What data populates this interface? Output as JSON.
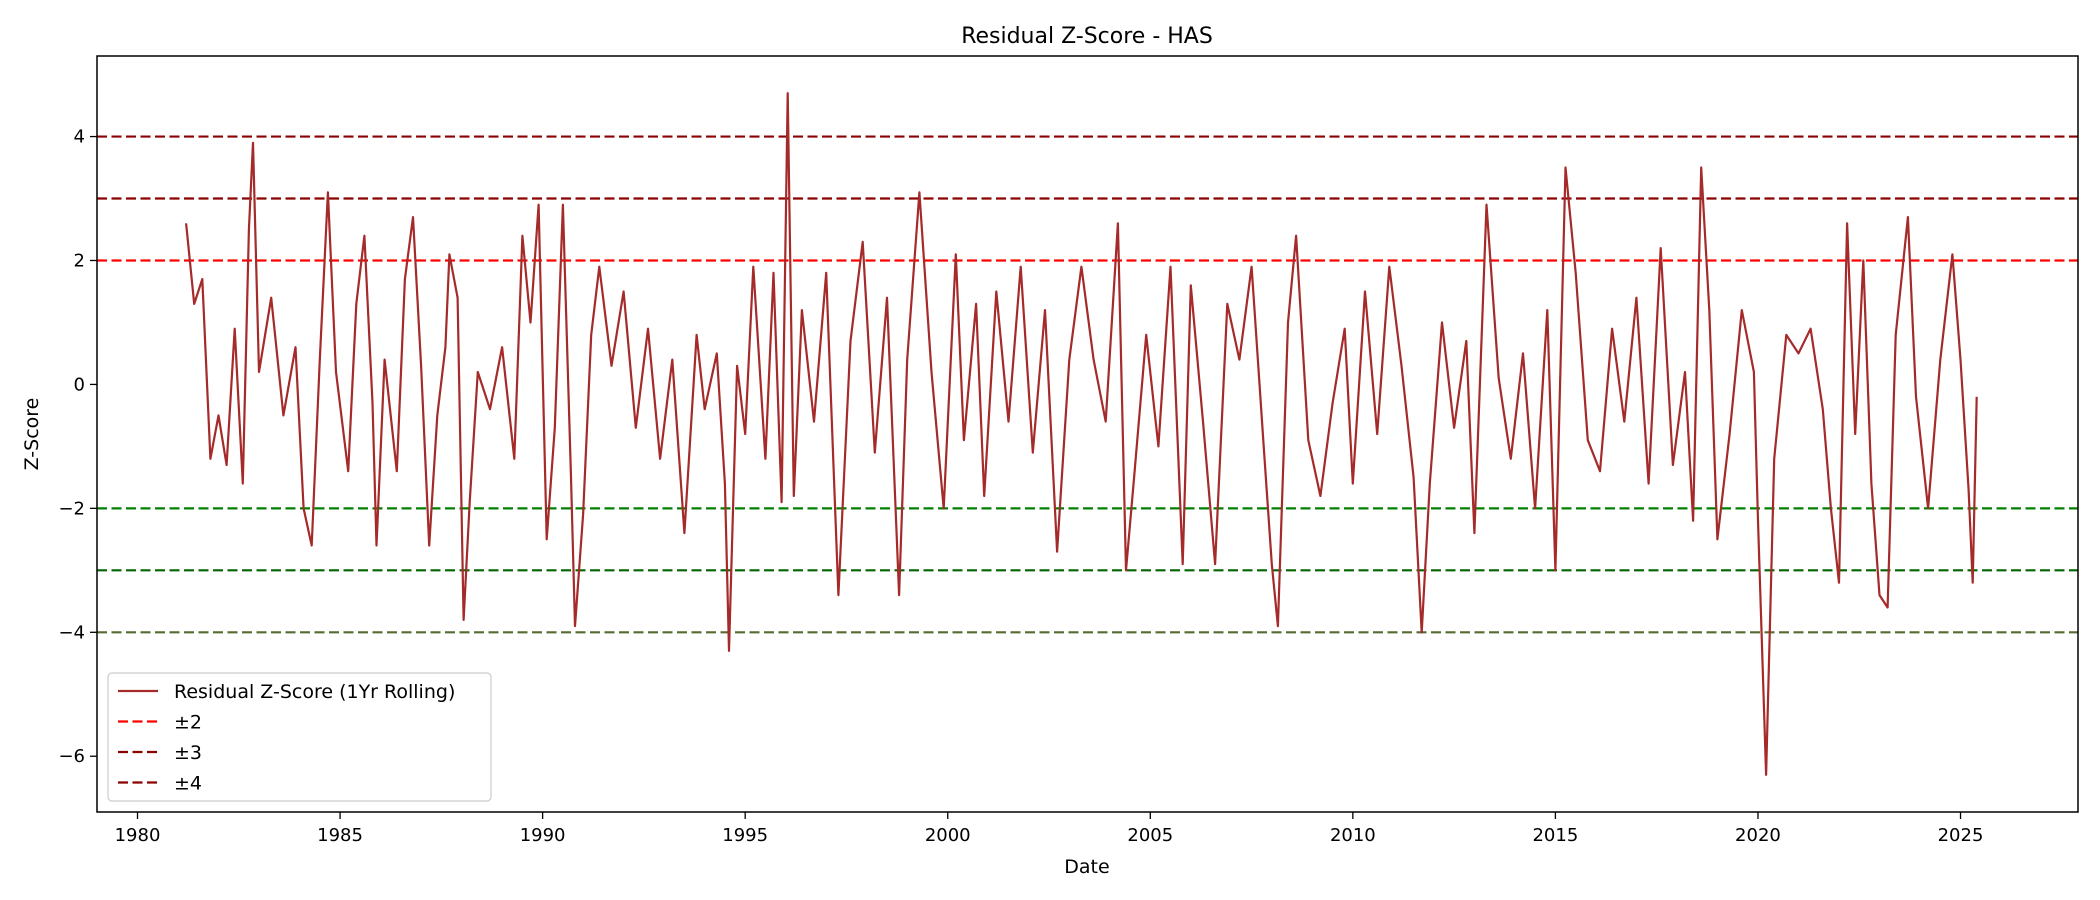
{
  "chart_data": {
    "type": "line",
    "title": "Residual Z-Score - HAS",
    "xlabel": "Date",
    "ylabel": "Z-Score",
    "xlim": [
      1979.0,
      2027.9
    ],
    "ylim": [
      -6.9,
      5.3
    ],
    "xticks": [
      1980,
      1985,
      1990,
      1995,
      2000,
      2005,
      2010,
      2015,
      2020,
      2025
    ],
    "xtick_labels": [
      "1980",
      "1985",
      "1990",
      "1995",
      "2000",
      "2005",
      "2010",
      "2015",
      "2020",
      "2025"
    ],
    "yticks": [
      4,
      2,
      0,
      -2,
      -4,
      -6
    ],
    "ytick_labels": [
      "4",
      "2",
      "0",
      "−2",
      "−4",
      "−6"
    ],
    "grid": false,
    "legend_position": "lower-left",
    "series": [
      {
        "name": "Residual Z-Score (1Yr Rolling)",
        "color": "#a52a2a",
        "points": [
          [
            1981.2,
            2.6
          ],
          [
            1981.4,
            1.3
          ],
          [
            1981.6,
            1.7
          ],
          [
            1981.8,
            -1.2
          ],
          [
            1982.0,
            -0.5
          ],
          [
            1982.2,
            -1.3
          ],
          [
            1982.4,
            0.9
          ],
          [
            1982.6,
            -1.6
          ],
          [
            1982.75,
            2.5
          ],
          [
            1982.85,
            3.9
          ],
          [
            1983.0,
            0.2
          ],
          [
            1983.3,
            1.4
          ],
          [
            1983.6,
            -0.5
          ],
          [
            1983.9,
            0.6
          ],
          [
            1984.1,
            -2.0
          ],
          [
            1984.3,
            -2.6
          ],
          [
            1984.5,
            0.4
          ],
          [
            1984.7,
            3.1
          ],
          [
            1984.9,
            0.2
          ],
          [
            1985.2,
            -1.4
          ],
          [
            1985.4,
            1.3
          ],
          [
            1985.6,
            2.4
          ],
          [
            1985.8,
            -0.3
          ],
          [
            1985.9,
            -2.6
          ],
          [
            1986.1,
            0.4
          ],
          [
            1986.4,
            -1.4
          ],
          [
            1986.6,
            1.7
          ],
          [
            1986.8,
            2.7
          ],
          [
            1987.0,
            0.3
          ],
          [
            1987.2,
            -2.6
          ],
          [
            1987.4,
            -0.5
          ],
          [
            1987.6,
            0.6
          ],
          [
            1987.7,
            2.1
          ],
          [
            1987.9,
            1.4
          ],
          [
            1988.05,
            -3.8
          ],
          [
            1988.2,
            -1.9
          ],
          [
            1988.4,
            0.2
          ],
          [
            1988.7,
            -0.4
          ],
          [
            1989.0,
            0.6
          ],
          [
            1989.3,
            -1.2
          ],
          [
            1989.5,
            2.4
          ],
          [
            1989.7,
            1.0
          ],
          [
            1989.9,
            2.9
          ],
          [
            1990.1,
            -2.5
          ],
          [
            1990.3,
            -0.7
          ],
          [
            1990.5,
            2.9
          ],
          [
            1990.7,
            -1.5
          ],
          [
            1990.8,
            -3.9
          ],
          [
            1991.0,
            -2.1
          ],
          [
            1991.2,
            0.8
          ],
          [
            1991.4,
            1.9
          ],
          [
            1991.7,
            0.3
          ],
          [
            1992.0,
            1.5
          ],
          [
            1992.3,
            -0.7
          ],
          [
            1992.6,
            0.9
          ],
          [
            1992.9,
            -1.2
          ],
          [
            1993.2,
            0.4
          ],
          [
            1993.5,
            -2.4
          ],
          [
            1993.8,
            0.8
          ],
          [
            1994.0,
            -0.4
          ],
          [
            1994.3,
            0.5
          ],
          [
            1994.5,
            -1.6
          ],
          [
            1994.6,
            -4.3
          ],
          [
            1994.8,
            0.3
          ],
          [
            1995.0,
            -0.8
          ],
          [
            1995.2,
            1.9
          ],
          [
            1995.5,
            -1.2
          ],
          [
            1995.7,
            1.8
          ],
          [
            1995.9,
            -1.9
          ],
          [
            1996.05,
            4.7
          ],
          [
            1996.2,
            -1.8
          ],
          [
            1996.4,
            1.2
          ],
          [
            1996.7,
            -0.6
          ],
          [
            1997.0,
            1.8
          ],
          [
            1997.3,
            -3.4
          ],
          [
            1997.6,
            0.7
          ],
          [
            1997.9,
            2.3
          ],
          [
            1998.2,
            -1.1
          ],
          [
            1998.5,
            1.4
          ],
          [
            1998.8,
            -3.4
          ],
          [
            1999.0,
            0.4
          ],
          [
            1999.3,
            3.1
          ],
          [
            1999.6,
            0.2
          ],
          [
            1999.9,
            -2.0
          ],
          [
            2000.2,
            2.1
          ],
          [
            2000.4,
            -0.9
          ],
          [
            2000.7,
            1.3
          ],
          [
            2000.9,
            -1.8
          ],
          [
            2001.2,
            1.5
          ],
          [
            2001.5,
            -0.6
          ],
          [
            2001.8,
            1.9
          ],
          [
            2002.1,
            -1.1
          ],
          [
            2002.4,
            1.2
          ],
          [
            2002.7,
            -2.7
          ],
          [
            2003.0,
            0.4
          ],
          [
            2003.3,
            1.9
          ],
          [
            2003.6,
            0.4
          ],
          [
            2003.9,
            -0.6
          ],
          [
            2004.2,
            2.6
          ],
          [
            2004.4,
            -3.0
          ],
          [
            2004.6,
            -1.5
          ],
          [
            2004.9,
            0.8
          ],
          [
            2005.2,
            -1.0
          ],
          [
            2005.5,
            1.9
          ],
          [
            2005.8,
            -2.9
          ],
          [
            2006.0,
            1.6
          ],
          [
            2006.3,
            -0.6
          ],
          [
            2006.6,
            -2.9
          ],
          [
            2006.9,
            1.3
          ],
          [
            2007.2,
            0.4
          ],
          [
            2007.5,
            1.9
          ],
          [
            2007.8,
            -1.0
          ],
          [
            2008.0,
            -2.9
          ],
          [
            2008.15,
            -3.9
          ],
          [
            2008.4,
            1.0
          ],
          [
            2008.6,
            2.4
          ],
          [
            2008.9,
            -0.9
          ],
          [
            2009.2,
            -1.8
          ],
          [
            2009.5,
            -0.3
          ],
          [
            2009.8,
            0.9
          ],
          [
            2010.0,
            -1.6
          ],
          [
            2010.3,
            1.5
          ],
          [
            2010.6,
            -0.8
          ],
          [
            2010.9,
            1.9
          ],
          [
            2011.2,
            0.3
          ],
          [
            2011.5,
            -1.5
          ],
          [
            2011.7,
            -4.0
          ],
          [
            2011.9,
            -1.6
          ],
          [
            2012.2,
            1.0
          ],
          [
            2012.5,
            -0.7
          ],
          [
            2012.8,
            0.7
          ],
          [
            2013.0,
            -2.4
          ],
          [
            2013.3,
            2.9
          ],
          [
            2013.6,
            0.1
          ],
          [
            2013.9,
            -1.2
          ],
          [
            2014.2,
            0.5
          ],
          [
            2014.5,
            -2.0
          ],
          [
            2014.8,
            1.2
          ],
          [
            2015.0,
            -3.0
          ],
          [
            2015.25,
            3.5
          ],
          [
            2015.5,
            1.8
          ],
          [
            2015.8,
            -0.9
          ],
          [
            2016.1,
            -1.4
          ],
          [
            2016.4,
            0.9
          ],
          [
            2016.7,
            -0.6
          ],
          [
            2017.0,
            1.4
          ],
          [
            2017.3,
            -1.6
          ],
          [
            2017.6,
            2.2
          ],
          [
            2017.9,
            -1.3
          ],
          [
            2018.2,
            0.2
          ],
          [
            2018.4,
            -2.2
          ],
          [
            2018.6,
            3.5
          ],
          [
            2018.8,
            1.2
          ],
          [
            2019.0,
            -2.5
          ],
          [
            2019.3,
            -0.8
          ],
          [
            2019.6,
            1.2
          ],
          [
            2019.9,
            0.2
          ],
          [
            2020.0,
            -2.2
          ],
          [
            2020.2,
            -6.3
          ],
          [
            2020.4,
            -1.2
          ],
          [
            2020.7,
            0.8
          ],
          [
            2021.0,
            0.5
          ],
          [
            2021.3,
            0.9
          ],
          [
            2021.6,
            -0.4
          ],
          [
            2021.8,
            -2.0
          ],
          [
            2022.0,
            -3.2
          ],
          [
            2022.2,
            2.6
          ],
          [
            2022.4,
            -0.8
          ],
          [
            2022.6,
            2.0
          ],
          [
            2022.8,
            -1.6
          ],
          [
            2023.0,
            -3.4
          ],
          [
            2023.2,
            -3.6
          ],
          [
            2023.4,
            0.8
          ],
          [
            2023.7,
            2.7
          ],
          [
            2023.9,
            -0.2
          ],
          [
            2024.2,
            -2.0
          ],
          [
            2024.5,
            0.4
          ],
          [
            2024.8,
            2.1
          ],
          [
            2025.0,
            0.4
          ],
          [
            2025.2,
            -1.7
          ],
          [
            2025.3,
            -3.2
          ],
          [
            2025.4,
            -0.2
          ]
        ]
      }
    ],
    "reference_lines": [
      {
        "name": "±2",
        "values": [
          2,
          -2
        ],
        "colors": [
          "#ff0000",
          "#008000"
        ]
      },
      {
        "name": "±3",
        "values": [
          3,
          -3
        ],
        "colors": [
          "#8b0000",
          "#006400"
        ]
      },
      {
        "name": "±4",
        "values": [
          4,
          -4
        ],
        "colors": [
          "#8b0000",
          "#556b2f"
        ]
      }
    ],
    "legend_entries": [
      {
        "label": "Residual Z-Score (1Yr Rolling)",
        "color": "#a52a2a",
        "style": "solid"
      },
      {
        "label": "±2",
        "color": "#ff0000",
        "style": "dashed"
      },
      {
        "label": "±3",
        "color": "#8b0000",
        "style": "dashed"
      },
      {
        "label": "±4",
        "color": "#8b0000",
        "style": "dashed"
      }
    ]
  }
}
